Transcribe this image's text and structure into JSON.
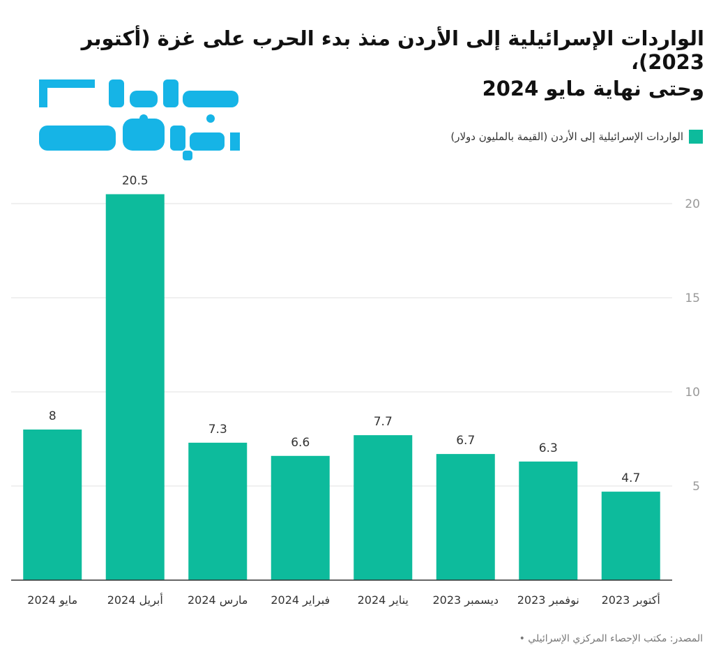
{
  "title_line1": "الواردات الإسرائيلية إلى الأردن منذ بدء الحرب على غزة (أكتوبر 2023)،",
  "title_line2": "وحتى نهاية مايو 2024",
  "logo": {
    "text": "عربي بوست",
    "color": "#16b4e6"
  },
  "legend": {
    "label": "الواردات الإسرائيلية إلى الأردن (القيمة بالمليون دولار)",
    "color": "#0dbb9c"
  },
  "source": "المصدر: مكتب الإحصاء المركزي الإسرائيلي •",
  "chart_data": {
    "type": "bar",
    "categories": [
      "مايو 2024",
      "أبريل 2024",
      "مارس 2024",
      "فبراير 2024",
      "يناير 2024",
      "ديسمبر 2023",
      "نوفمبر 2023",
      "أكتوبر 2023"
    ],
    "series": [
      {
        "name": "الواردات الإسرائيلية إلى الأردن (القيمة بالمليون دولار)",
        "values": [
          8,
          20.5,
          7.3,
          6.6,
          7.7,
          6.7,
          6.3,
          4.7
        ]
      }
    ],
    "yticks": [
      5,
      10,
      15,
      20
    ],
    "ylim": [
      0,
      20
    ],
    "axis_side": "right",
    "grid": true,
    "show_data_labels": true,
    "bar_color": "#0dbb9c",
    "title": "الواردات الإسرائيلية إلى الأردن منذ بدء الحرب على غزة (أكتوبر 2023)، وحتى نهاية مايو 2024",
    "xlabel": "",
    "ylabel": ""
  }
}
